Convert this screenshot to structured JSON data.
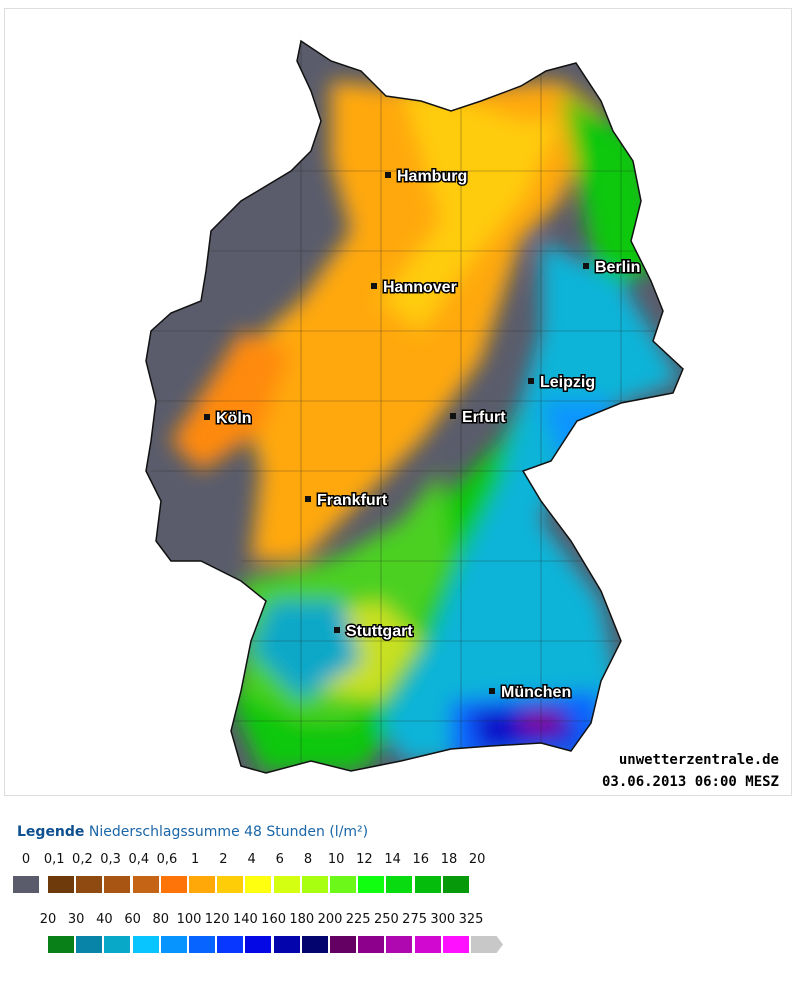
{
  "map": {
    "cities": [
      {
        "name": "Hamburg"
      },
      {
        "name": "Berlin"
      },
      {
        "name": "Hannover"
      },
      {
        "name": "Leipzig"
      },
      {
        "name": "Köln"
      },
      {
        "name": "Erfurt"
      },
      {
        "name": "Frankfurt"
      },
      {
        "name": "Stuttgart"
      },
      {
        "name": "München"
      }
    ],
    "source": "unwetterzentrale.de",
    "timestamp": "03.06.2013 06:00 MESZ"
  },
  "legend": {
    "title_bold": "Legende",
    "title": "Niederschlagssumme 48 Stunden  (l/m²)",
    "row1": [
      {
        "label": "0",
        "color": "#5a5c6b"
      },
      {
        "label": "0,1",
        "color": "#6e3a0c"
      },
      {
        "label": "0,2",
        "color": "#8e4a10"
      },
      {
        "label": "0,3",
        "color": "#a85412"
      },
      {
        "label": "0,4",
        "color": "#c46414"
      },
      {
        "label": "0,6",
        "color": "#ff7408"
      },
      {
        "label": "1",
        "color": "#ffa808"
      },
      {
        "label": "2",
        "color": "#ffcc08"
      },
      {
        "label": "4",
        "color": "#ffff10"
      },
      {
        "label": "6",
        "color": "#d4ff10"
      },
      {
        "label": "8",
        "color": "#a8ff10"
      },
      {
        "label": "10",
        "color": "#6cf818"
      },
      {
        "label": "12",
        "color": "#10ff10"
      },
      {
        "label": "14",
        "color": "#08dc10"
      },
      {
        "label": "16",
        "color": "#04bc0c"
      },
      {
        "label": "18",
        "color": "#069a0a"
      },
      {
        "label": "20",
        "color": ""
      }
    ],
    "row2": [
      {
        "label": "20",
        "color": "#0a8018"
      },
      {
        "label": "30",
        "color": "#0884a8"
      },
      {
        "label": "40",
        "color": "#08a8c8"
      },
      {
        "label": "60",
        "color": "#08c4ff"
      },
      {
        "label": "80",
        "color": "#0894ff"
      },
      {
        "label": "100",
        "color": "#0864ff"
      },
      {
        "label": "120",
        "color": "#0838ff"
      },
      {
        "label": "140",
        "color": "#0408e4"
      },
      {
        "label": "160",
        "color": "#0404ac"
      },
      {
        "label": "180",
        "color": "#04046e"
      },
      {
        "label": "200",
        "color": "#640064"
      },
      {
        "label": "225",
        "color": "#8c008c"
      },
      {
        "label": "250",
        "color": "#b008b0"
      },
      {
        "label": "275",
        "color": "#d008d0"
      },
      {
        "label": "300",
        "color": "#ff10ff"
      },
      {
        "label": "325",
        "color": "#c8c8c8"
      }
    ]
  }
}
